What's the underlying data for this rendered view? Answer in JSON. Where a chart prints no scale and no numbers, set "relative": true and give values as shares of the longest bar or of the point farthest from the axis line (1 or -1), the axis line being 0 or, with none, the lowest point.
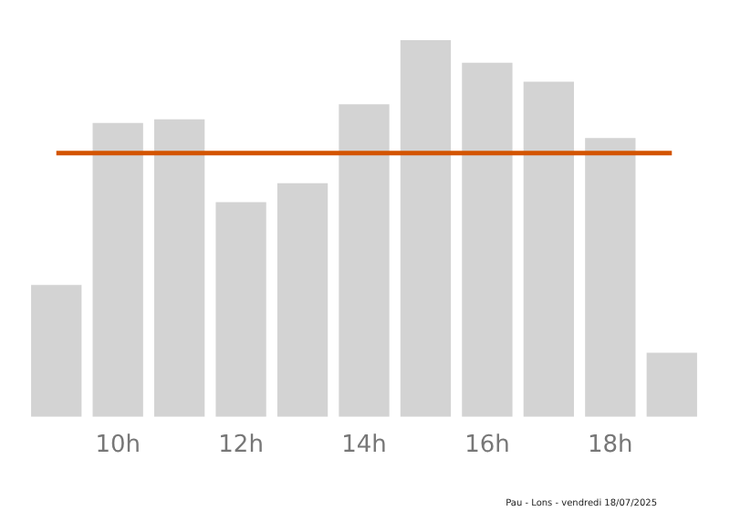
{
  "chart_data": {
    "type": "bar",
    "relative": true,
    "categories": [
      null,
      "10h",
      null,
      "12h",
      null,
      "14h",
      null,
      "16h",
      null,
      "18h",
      null
    ],
    "values": [
      0.35,
      0.78,
      0.79,
      0.57,
      0.62,
      0.83,
      1,
      0.94,
      0.89,
      0.74,
      0.17
    ],
    "color": "#d3d3d3",
    "ref_lines": [
      {
        "axis": "y",
        "value": 0.7,
        "color": "#d35400"
      }
    ],
    "grid": false,
    "legend": false,
    "annotations": [
      "Pau - Lons - vendredi 18/07/2025"
    ]
  }
}
